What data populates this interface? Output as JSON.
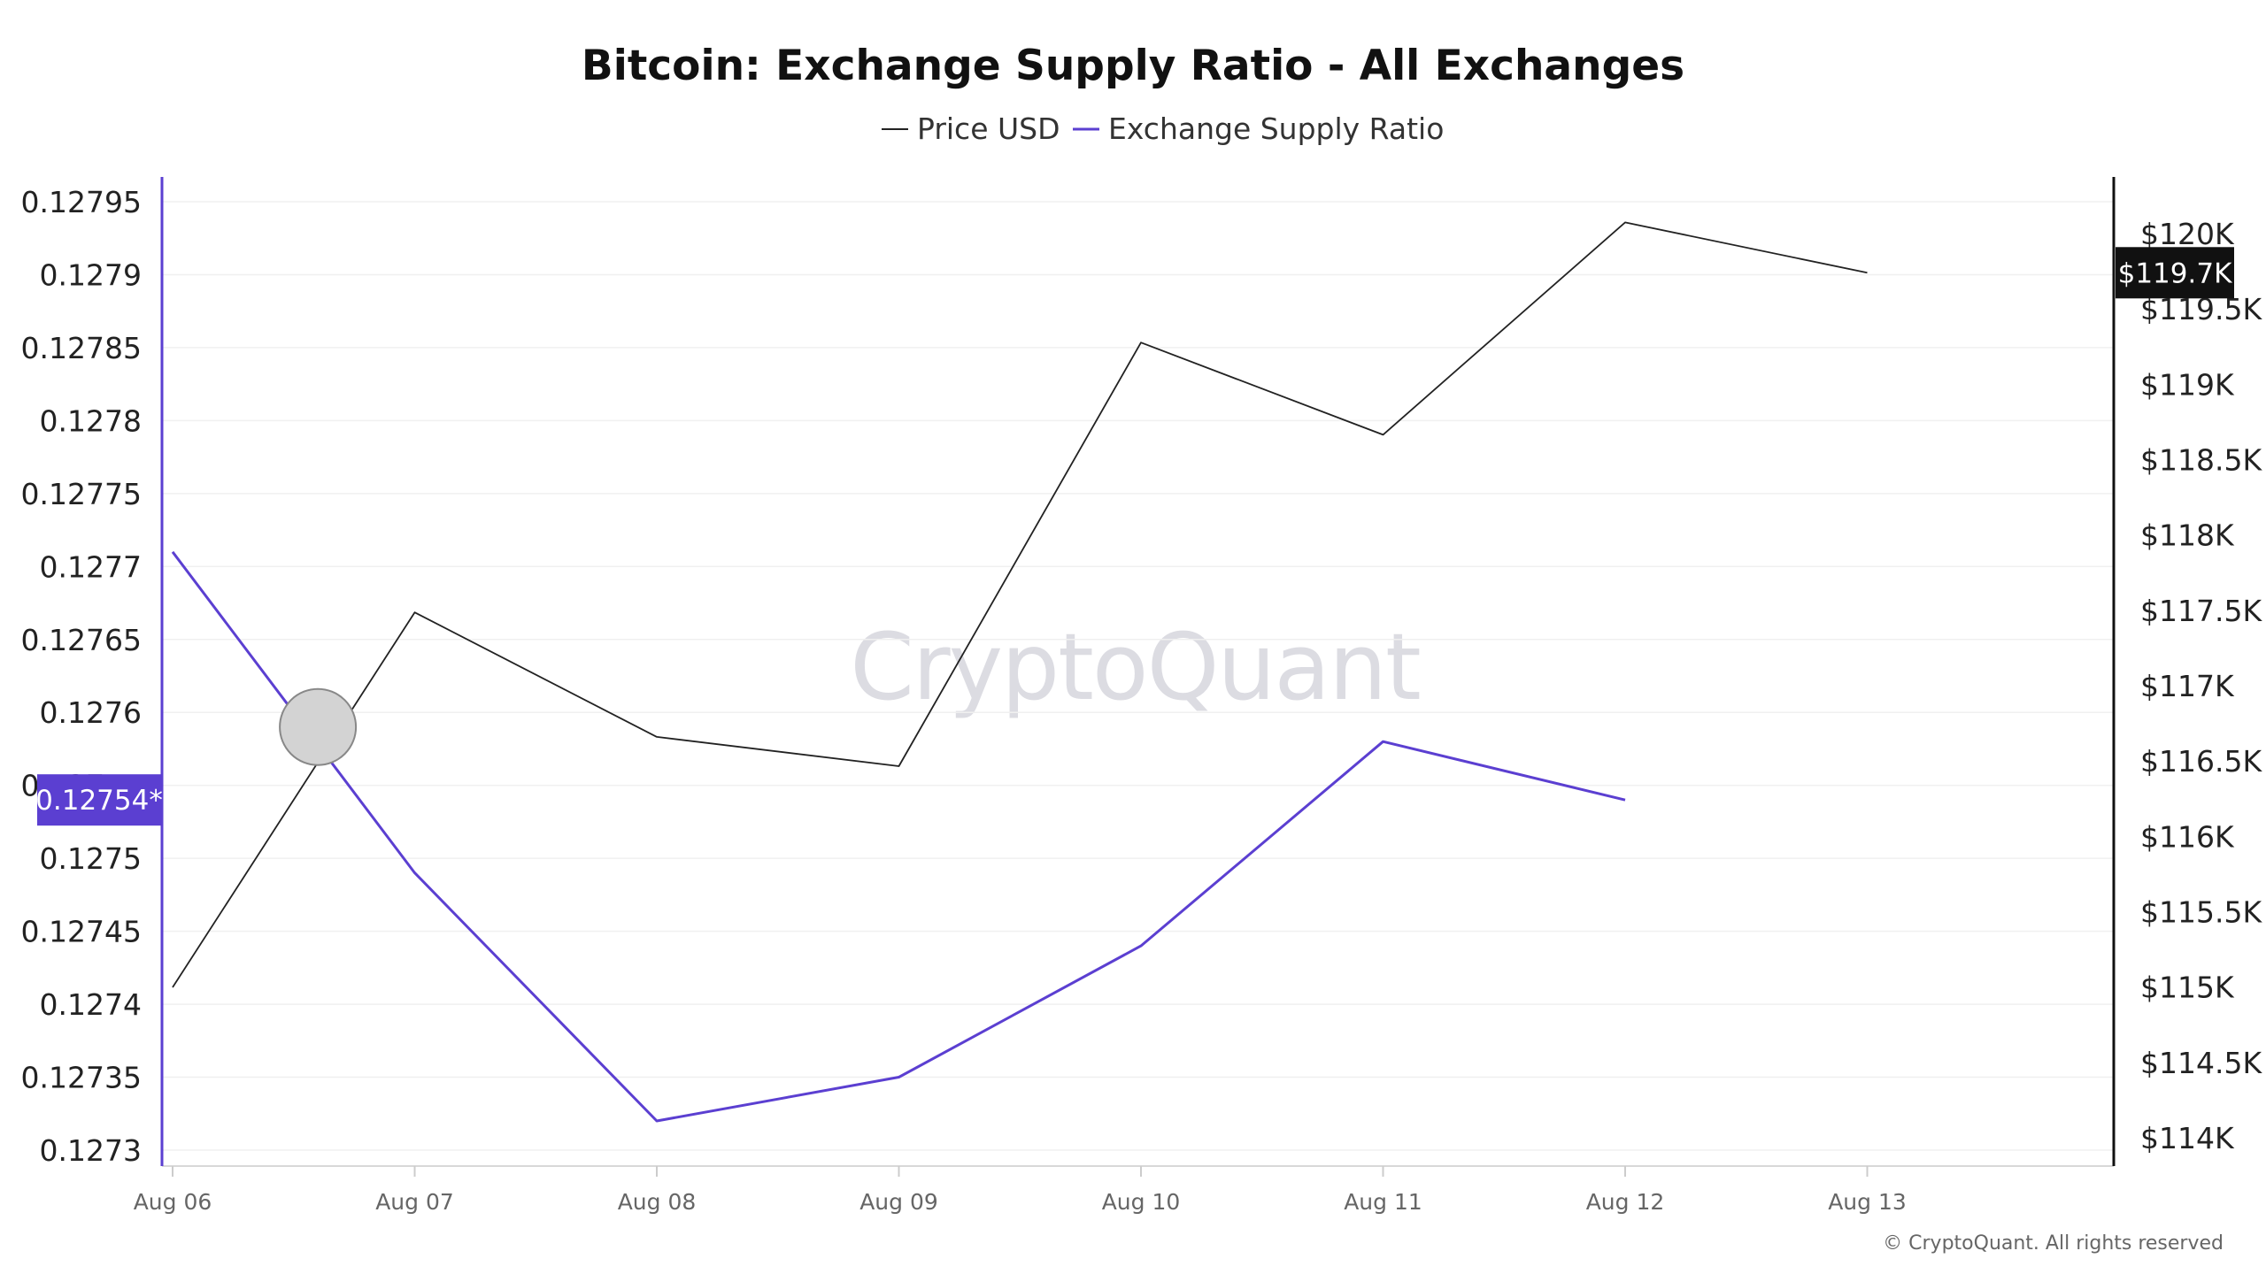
{
  "chart_data": {
    "type": "line",
    "title": "Bitcoin: Exchange Supply Ratio - All Exchanges",
    "x": [
      "Aug 06",
      "Aug 07",
      "Aug 08",
      "Aug 09",
      "Aug 10",
      "Aug 11",
      "Aug 12",
      "Aug 13"
    ],
    "series": [
      {
        "name": "Price USD",
        "axis": "right",
        "color": "#222222",
        "values": [
          114998,
          117486,
          116660,
          116466,
          119277,
          118665,
          120074,
          119740
        ]
      },
      {
        "name": "Exchange Supply Ratio",
        "axis": "left",
        "color": "#5b3fd1",
        "values": [
          0.12771,
          0.12749,
          0.12732,
          0.12735,
          0.12744,
          0.12758,
          0.12754,
          null
        ]
      }
    ],
    "left_axis": {
      "ticks": [
        "0.1273",
        "0.12735",
        "0.1274",
        "0.12745",
        "0.1275",
        "0.12755",
        "0.1276",
        "0.12765",
        "0.1277",
        "0.12775",
        "0.1278",
        "0.12785",
        "0.1279",
        "0.12795"
      ],
      "range": [
        0.1273,
        0.12795
      ],
      "current_label": "0.12754*",
      "current_value": 0.12754,
      "color": "#5b3fd1"
    },
    "right_axis": {
      "ticks": [
        "$114K",
        "$114.5K",
        "$115K",
        "$115.5K",
        "$116K",
        "$116.5K",
        "$117K",
        "$117.5K",
        "$118K",
        "$118.5K",
        "$119K",
        "$119.5K",
        "$120K"
      ],
      "range": [
        114000,
        120000
      ],
      "current_label": "$119.7K",
      "current_value": 119740
    },
    "grid": true,
    "legend_position": "top-center",
    "hover_marker": {
      "x_index": 0.6,
      "value": 0.12759
    },
    "watermark": "CryptoQuant",
    "copyright": "© CryptoQuant. All rights reserved"
  }
}
